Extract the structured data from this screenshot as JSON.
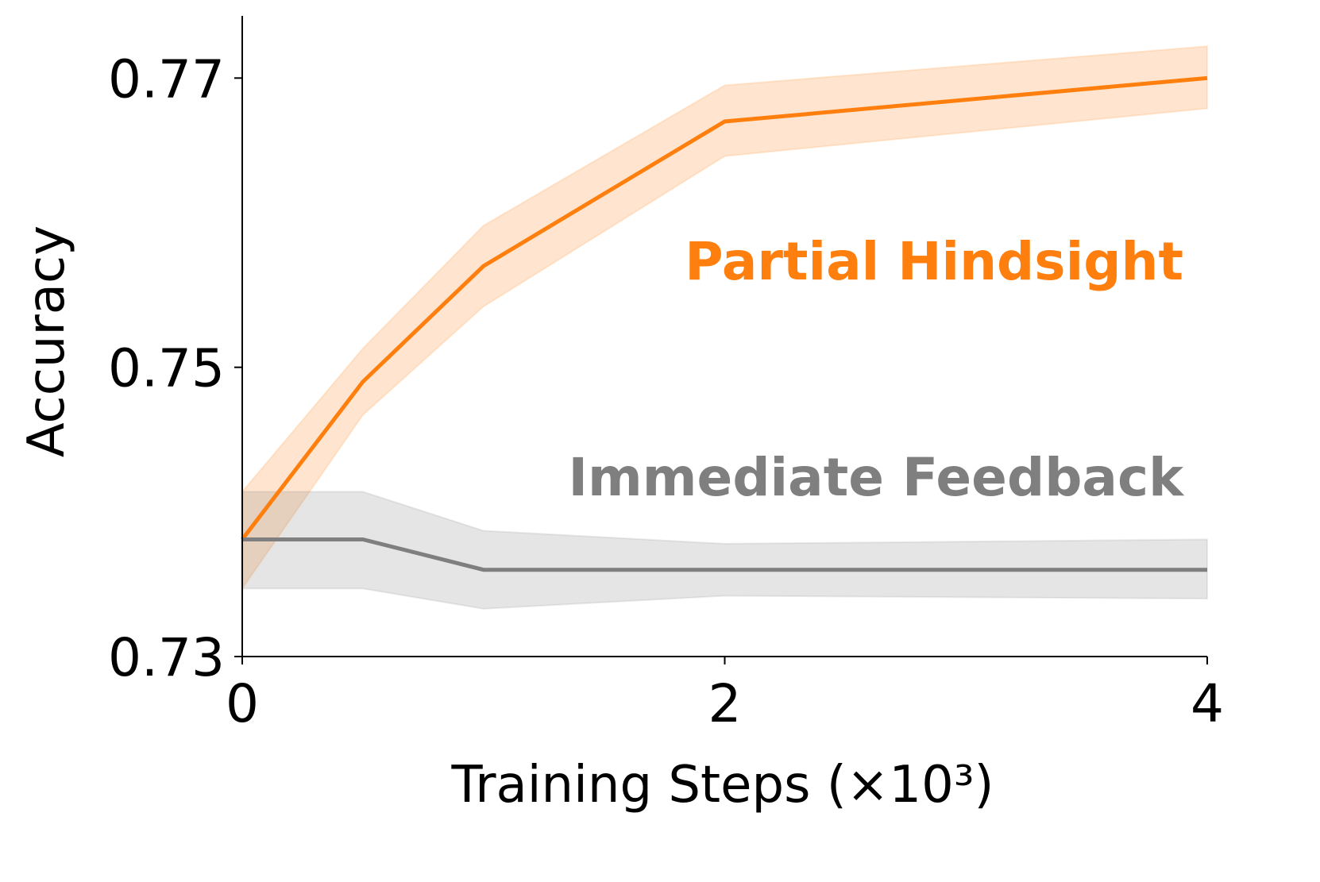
{
  "chart_data": {
    "type": "line",
    "x_label": "Training Steps (×10³)",
    "y_label": "Accuracy",
    "x": [
      0,
      0.5,
      1,
      2,
      4
    ],
    "series": [
      {
        "name": "Partial Hindsight",
        "color": "#ff7f0e",
        "values": [
          0.7381,
          0.749,
          0.757,
          0.767,
          0.77
        ],
        "lower": [
          0.7347,
          0.7467,
          0.7542,
          0.7646,
          0.7679
        ],
        "upper": [
          0.7414,
          0.7513,
          0.7598,
          0.7695,
          0.7722
        ]
      },
      {
        "name": "Immediate Feedback",
        "color": "#7f7f7f",
        "values": [
          0.7381,
          0.7381,
          0.736,
          0.736,
          0.736
        ],
        "lower": [
          0.7347,
          0.7347,
          0.7333,
          0.7342,
          0.734
        ],
        "upper": [
          0.7414,
          0.7414,
          0.7387,
          0.7378,
          0.7381
        ]
      }
    ],
    "xlim": [
      0,
      4
    ],
    "xticks": [
      0,
      2,
      4
    ],
    "ylim": [
      0.73,
      0.7743
    ],
    "yticks": [
      0.73,
      0.75,
      0.77
    ],
    "grid": false
  }
}
